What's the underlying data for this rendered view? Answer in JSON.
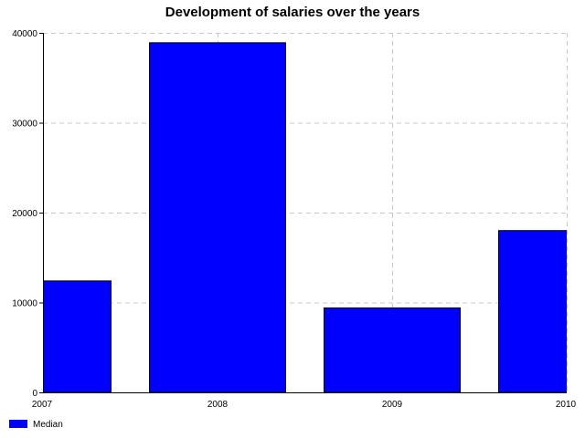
{
  "chart_data": {
    "type": "bar",
    "title": "Development of salaries over the years",
    "categories": [
      "2007",
      "2008",
      "2009",
      "2010"
    ],
    "series": [
      {
        "name": "Median",
        "values": [
          12400,
          38900,
          9400,
          18000
        ]
      }
    ],
    "ylim": [
      0,
      40000
    ],
    "yticks": [
      "0",
      "10000",
      "20000",
      "30000",
      "40000"
    ],
    "xlabel": "",
    "ylabel": "",
    "grid": true,
    "legend_position": "bottom-left",
    "colors": {
      "bar": "#0000ff",
      "bar_outline": "#000000",
      "grid": "#c8c8c8"
    }
  }
}
